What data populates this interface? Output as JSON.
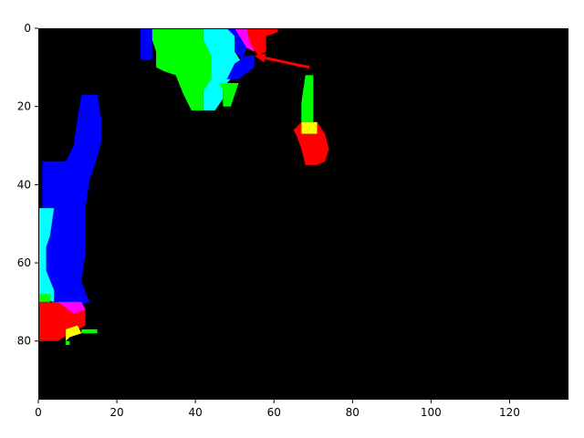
{
  "chart_data": {
    "type": "heatmap",
    "title": "",
    "xlabel": "",
    "ylabel": "",
    "xlim": [
      0,
      135
    ],
    "ylim": [
      95,
      0
    ],
    "y_axis_inverted": true,
    "grid": false,
    "background_color": "#000000",
    "x_ticks": [
      0,
      20,
      40,
      60,
      80,
      100,
      120
    ],
    "y_ticks": [
      0,
      20,
      40,
      60,
      80
    ],
    "x_tick_labels": [
      "0",
      "20",
      "40",
      "60",
      "80",
      "100",
      "120"
    ],
    "y_tick_labels": [
      "0",
      "20",
      "40",
      "60",
      "80"
    ],
    "palette": {
      "red": "#ff0000",
      "green": "#00ff00",
      "blue": "#0000ff",
      "cyan": "#00ffff",
      "yellow": "#ffff00",
      "magenta": "#ff00ff"
    },
    "regions": [
      {
        "class": "blue",
        "polygon": [
          [
            26,
            0
          ],
          [
            29,
            0
          ],
          [
            29,
            8
          ],
          [
            26,
            8
          ]
        ]
      },
      {
        "class": "green",
        "polygon": [
          [
            29,
            0
          ],
          [
            42,
            0
          ],
          [
            42,
            3
          ],
          [
            44,
            7
          ],
          [
            44,
            13
          ],
          [
            42,
            16
          ],
          [
            42,
            21
          ],
          [
            39,
            21
          ],
          [
            37,
            17
          ],
          [
            35,
            12
          ],
          [
            32,
            11
          ],
          [
            30,
            10
          ],
          [
            30,
            6
          ],
          [
            29,
            3
          ]
        ]
      },
      {
        "class": "cyan",
        "polygon": [
          [
            42,
            0
          ],
          [
            50,
            0
          ],
          [
            50,
            6
          ],
          [
            52,
            9
          ],
          [
            50,
            12
          ],
          [
            48,
            14
          ],
          [
            47,
            16
          ],
          [
            47,
            18
          ],
          [
            45,
            21
          ],
          [
            42,
            21
          ],
          [
            42,
            16
          ],
          [
            44,
            13
          ],
          [
            44,
            7
          ],
          [
            42,
            3
          ]
        ]
      },
      {
        "class": "green",
        "polygon": [
          [
            46,
            14
          ],
          [
            51,
            14
          ],
          [
            49,
            20
          ],
          [
            47,
            20
          ],
          [
            47,
            16
          ]
        ]
      },
      {
        "class": "blue",
        "polygon": [
          [
            48,
            13
          ],
          [
            50,
            9
          ],
          [
            53,
            7
          ],
          [
            55,
            7
          ],
          [
            55,
            10
          ],
          [
            51,
            13
          ]
        ]
      },
      {
        "class": "blue",
        "polygon": [
          [
            48,
            0
          ],
          [
            52,
            0
          ],
          [
            53,
            5
          ],
          [
            52,
            8
          ],
          [
            50,
            6
          ],
          [
            50,
            2
          ]
        ]
      },
      {
        "class": "magenta",
        "polygon": [
          [
            50,
            0
          ],
          [
            53,
            0
          ],
          [
            55,
            3
          ],
          [
            55,
            6
          ],
          [
            53,
            5
          ]
        ]
      },
      {
        "class": "red",
        "polygon": [
          [
            53,
            0
          ],
          [
            61,
            0
          ],
          [
            61,
            1
          ],
          [
            58,
            2
          ],
          [
            58,
            6
          ],
          [
            56,
            7
          ],
          [
            54,
            4
          ]
        ]
      },
      {
        "class": "green",
        "polygon": [
          [
            68,
            12
          ],
          [
            70,
            12
          ],
          [
            70,
            24
          ],
          [
            67,
            24
          ],
          [
            67,
            19
          ]
        ]
      },
      {
        "class": "yellow",
        "polygon": [
          [
            67,
            24
          ],
          [
            71,
            24
          ],
          [
            71,
            27
          ],
          [
            67,
            27
          ]
        ]
      },
      {
        "class": "red",
        "polygon": [
          [
            65,
            26
          ],
          [
            67,
            24
          ],
          [
            67,
            27
          ],
          [
            71,
            27
          ],
          [
            71,
            24
          ],
          [
            73,
            27
          ],
          [
            74,
            31
          ],
          [
            73,
            34
          ],
          [
            71,
            35
          ],
          [
            68,
            35
          ],
          [
            67,
            31
          ],
          [
            66,
            28
          ]
        ]
      },
      {
        "class": "blue",
        "polygon": [
          [
            11,
            17
          ],
          [
            15,
            17
          ],
          [
            16,
            23
          ],
          [
            16,
            29
          ],
          [
            15,
            33
          ],
          [
            13,
            39
          ],
          [
            12,
            46
          ],
          [
            12,
            57
          ],
          [
            11,
            65
          ],
          [
            13,
            70
          ],
          [
            10,
            71
          ],
          [
            4,
            70
          ],
          [
            2,
            64
          ],
          [
            1,
            55
          ],
          [
            1,
            43
          ],
          [
            1,
            34
          ],
          [
            7,
            34
          ],
          [
            9,
            30
          ],
          [
            10,
            23
          ]
        ]
      },
      {
        "class": "cyan",
        "polygon": [
          [
            0,
            46
          ],
          [
            4,
            46
          ],
          [
            3,
            53
          ],
          [
            2,
            56
          ],
          [
            2,
            62
          ],
          [
            4,
            67
          ],
          [
            4,
            70
          ],
          [
            0,
            69
          ]
        ]
      },
      {
        "class": "green",
        "polygon": [
          [
            0,
            68
          ],
          [
            3,
            68
          ],
          [
            3,
            70
          ],
          [
            0,
            70
          ]
        ]
      },
      {
        "class": "magenta",
        "polygon": [
          [
            5,
            70
          ],
          [
            11,
            70
          ],
          [
            12,
            72
          ],
          [
            9,
            73
          ],
          [
            6,
            72
          ]
        ]
      },
      {
        "class": "red",
        "polygon": [
          [
            0,
            70
          ],
          [
            5,
            70
          ],
          [
            9,
            73
          ],
          [
            12,
            72
          ],
          [
            12,
            76
          ],
          [
            10,
            77
          ],
          [
            8,
            78
          ],
          [
            5,
            80
          ],
          [
            0,
            80
          ]
        ]
      },
      {
        "class": "yellow",
        "polygon": [
          [
            7,
            77
          ],
          [
            10,
            76
          ],
          [
            11,
            78
          ],
          [
            8,
            79
          ],
          [
            7,
            80
          ]
        ]
      },
      {
        "class": "green",
        "polygon": [
          [
            11,
            77
          ],
          [
            15,
            77
          ],
          [
            15,
            78
          ],
          [
            11,
            78
          ]
        ]
      },
      {
        "class": "green",
        "polygon": [
          [
            7,
            80
          ],
          [
            8,
            80
          ],
          [
            8,
            81
          ],
          [
            7,
            81
          ]
        ]
      }
    ],
    "annotations": [
      {
        "type": "arrow",
        "color": "#ff0000",
        "from": [
          69,
          10
        ],
        "to": [
          55,
          7
        ]
      }
    ]
  }
}
